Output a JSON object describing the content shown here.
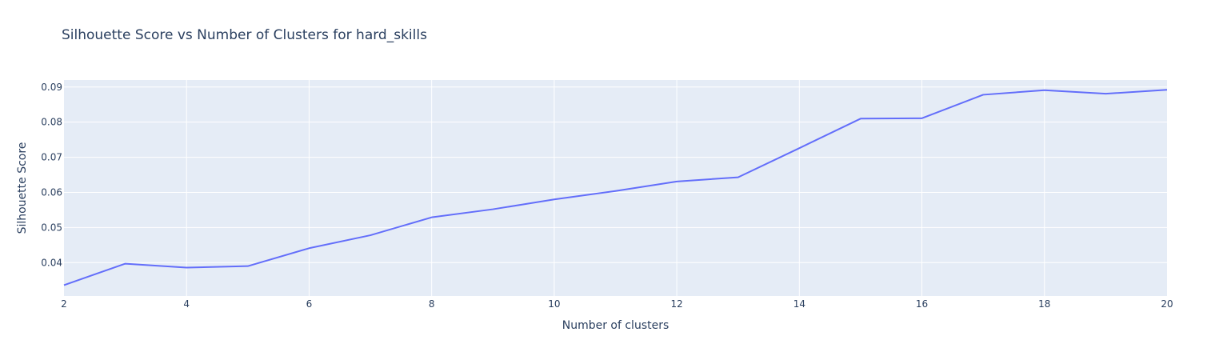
{
  "chart_data": {
    "type": "line",
    "title": "Silhouette Score vs Number of Clusters for hard_skills",
    "xlabel": "Number of clusters",
    "ylabel": "Silhouette Score",
    "xlim": [
      2,
      20
    ],
    "ylim": [
      0.0305,
      0.092
    ],
    "x_ticks": [
      2,
      4,
      6,
      8,
      10,
      12,
      14,
      16,
      18,
      20
    ],
    "y_ticks": [
      0.04,
      0.05,
      0.06,
      0.07,
      0.08,
      0.09
    ],
    "y_tick_labels": [
      "0.04",
      "0.05",
      "0.06",
      "0.07",
      "0.08",
      "0.09"
    ],
    "grid": true,
    "colors": {
      "plot_bg": "#e5ecf6",
      "grid": "#ffffff",
      "line": "#636efa",
      "text": "#2a3f5f"
    },
    "series": [
      {
        "x": [
          2,
          3,
          4,
          5,
          6,
          7,
          8,
          9,
          10,
          11,
          12,
          13,
          14,
          15,
          16,
          17,
          18,
          19,
          20
        ],
        "values": [
          0.0336,
          0.0397,
          0.0386,
          0.039,
          0.0441,
          0.0478,
          0.0529,
          0.0552,
          0.058,
          0.0604,
          0.0631,
          0.0643,
          0.0726,
          0.081,
          0.0811,
          0.0878,
          0.0891,
          0.0881,
          0.0892
        ]
      }
    ]
  }
}
